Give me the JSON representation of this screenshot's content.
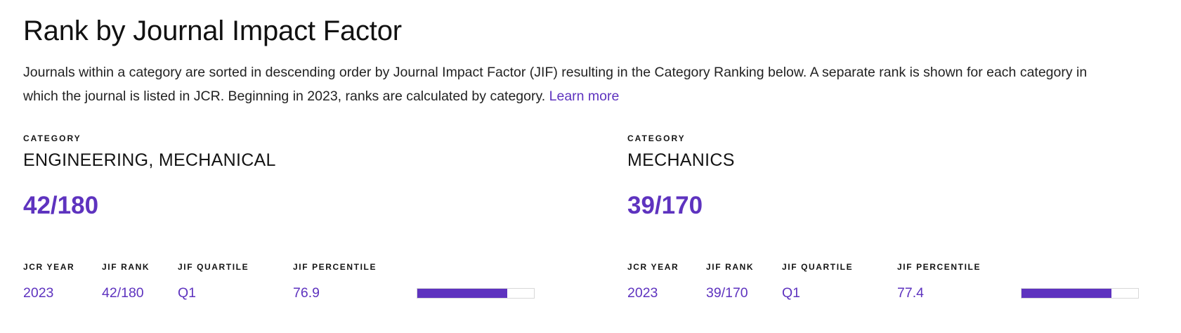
{
  "header": {
    "title": "Rank by Journal Impact Factor",
    "description": "Journals within a category are sorted in descending order by Journal Impact Factor (JIF) resulting in the Category Ranking below. A separate rank is shown for each category in which the journal is listed in JCR. Beginning in 2023, ranks are calculated by category.",
    "learn_more_label": "Learn more"
  },
  "labels": {
    "category": "CATEGORY",
    "table_headers": [
      "JCR YEAR",
      "JIF RANK",
      "JIF QUARTILE",
      "JIF PERCENTILE"
    ]
  },
  "colors": {
    "accent": "#5E33BF",
    "text": "#141414",
    "bar_track_border": "#d8d8d8"
  },
  "categories": [
    {
      "name": "ENGINEERING, MECHANICAL",
      "rank": "42/180",
      "rows": [
        {
          "jcr_year": "2023",
          "jif_rank": "42/180",
          "jif_quartile": "Q1",
          "jif_percentile": "76.9",
          "percentile_value": 76.9
        }
      ]
    },
    {
      "name": "MECHANICS",
      "rank": "39/170",
      "rows": [
        {
          "jcr_year": "2023",
          "jif_rank": "39/170",
          "jif_quartile": "Q1",
          "jif_percentile": "77.4",
          "percentile_value": 77.4
        }
      ]
    }
  ]
}
